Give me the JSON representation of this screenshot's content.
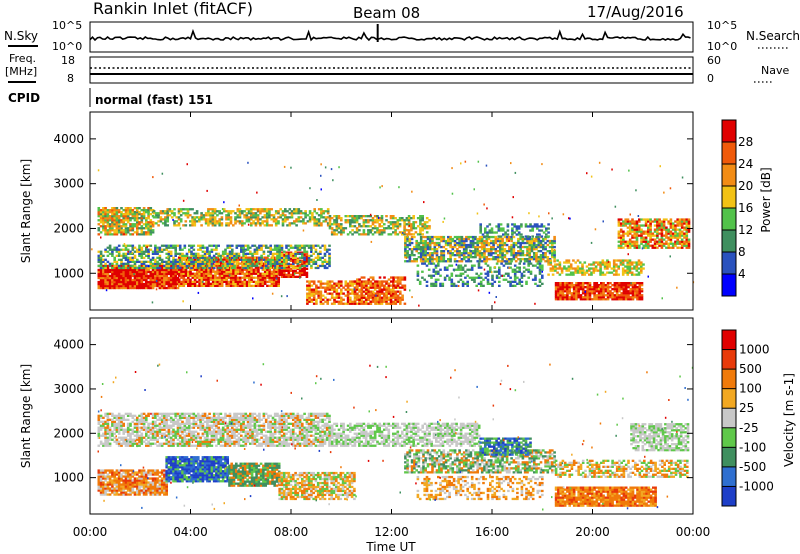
{
  "header": {
    "station": "Rankin Inlet (fitACF)",
    "beam": "Beam 08",
    "date": "17/Aug/2016"
  },
  "top_panels": {
    "nsky_label": "N.Sky",
    "nsky_tick_top": "10^5",
    "nsky_tick_bottom": "10^0",
    "nsearch_label": "N.Search",
    "nsearch_tick_top": "10^5",
    "nsearch_tick_bottom": "10^0",
    "freq_label_1": "Freq.",
    "freq_label_2": "[MHz]",
    "freq_tick_top": "18",
    "freq_tick_bottom": "8",
    "nave_label": "Nave",
    "nave_tick_top": "60",
    "nave_tick_bottom": "0",
    "cpid_label": "CPID",
    "cpid_value": "normal (fast) 151"
  },
  "x_axis": {
    "label": "Time UT",
    "ticks": [
      "00:00",
      "04:00",
      "08:00",
      "12:00",
      "16:00",
      "20:00",
      "00:00"
    ]
  },
  "chart_data": [
    {
      "type": "heatmap",
      "name": "power",
      "ylabel": "Slant Range [km]",
      "yticks": [
        1000,
        2000,
        3000,
        4000
      ],
      "ylim": [
        180,
        4600
      ],
      "xlim_hours": [
        0,
        24
      ],
      "colorbar_label": "Power [dB]",
      "colorbar_ticks": [
        4,
        8,
        12,
        16,
        20,
        24,
        28
      ],
      "colors": [
        "#0000ff",
        "#2a52be",
        "#3f8f5f",
        "#52c24a",
        "#f2c215",
        "#f28c15",
        "#f05a0a",
        "#e00000"
      ]
    },
    {
      "type": "heatmap",
      "name": "velocity",
      "ylabel": "Slant Range [km]",
      "yticks": [
        1000,
        2000,
        3000,
        4000
      ],
      "ylim": [
        180,
        4600
      ],
      "xlim_hours": [
        0,
        24
      ],
      "colorbar_label": "Velocity [m s-1]",
      "colorbar_ticks": [
        "1000",
        "500",
        "100",
        "25",
        "-25",
        "-100",
        "-500",
        "-1000"
      ],
      "colors": [
        "#1e3fc8",
        "#2f6fd0",
        "#3f8f5f",
        "#5fc84a",
        "#c8c8c8",
        "#f2a822",
        "#f07a0a",
        "#e83a0a",
        "#e00000"
      ]
    }
  ]
}
